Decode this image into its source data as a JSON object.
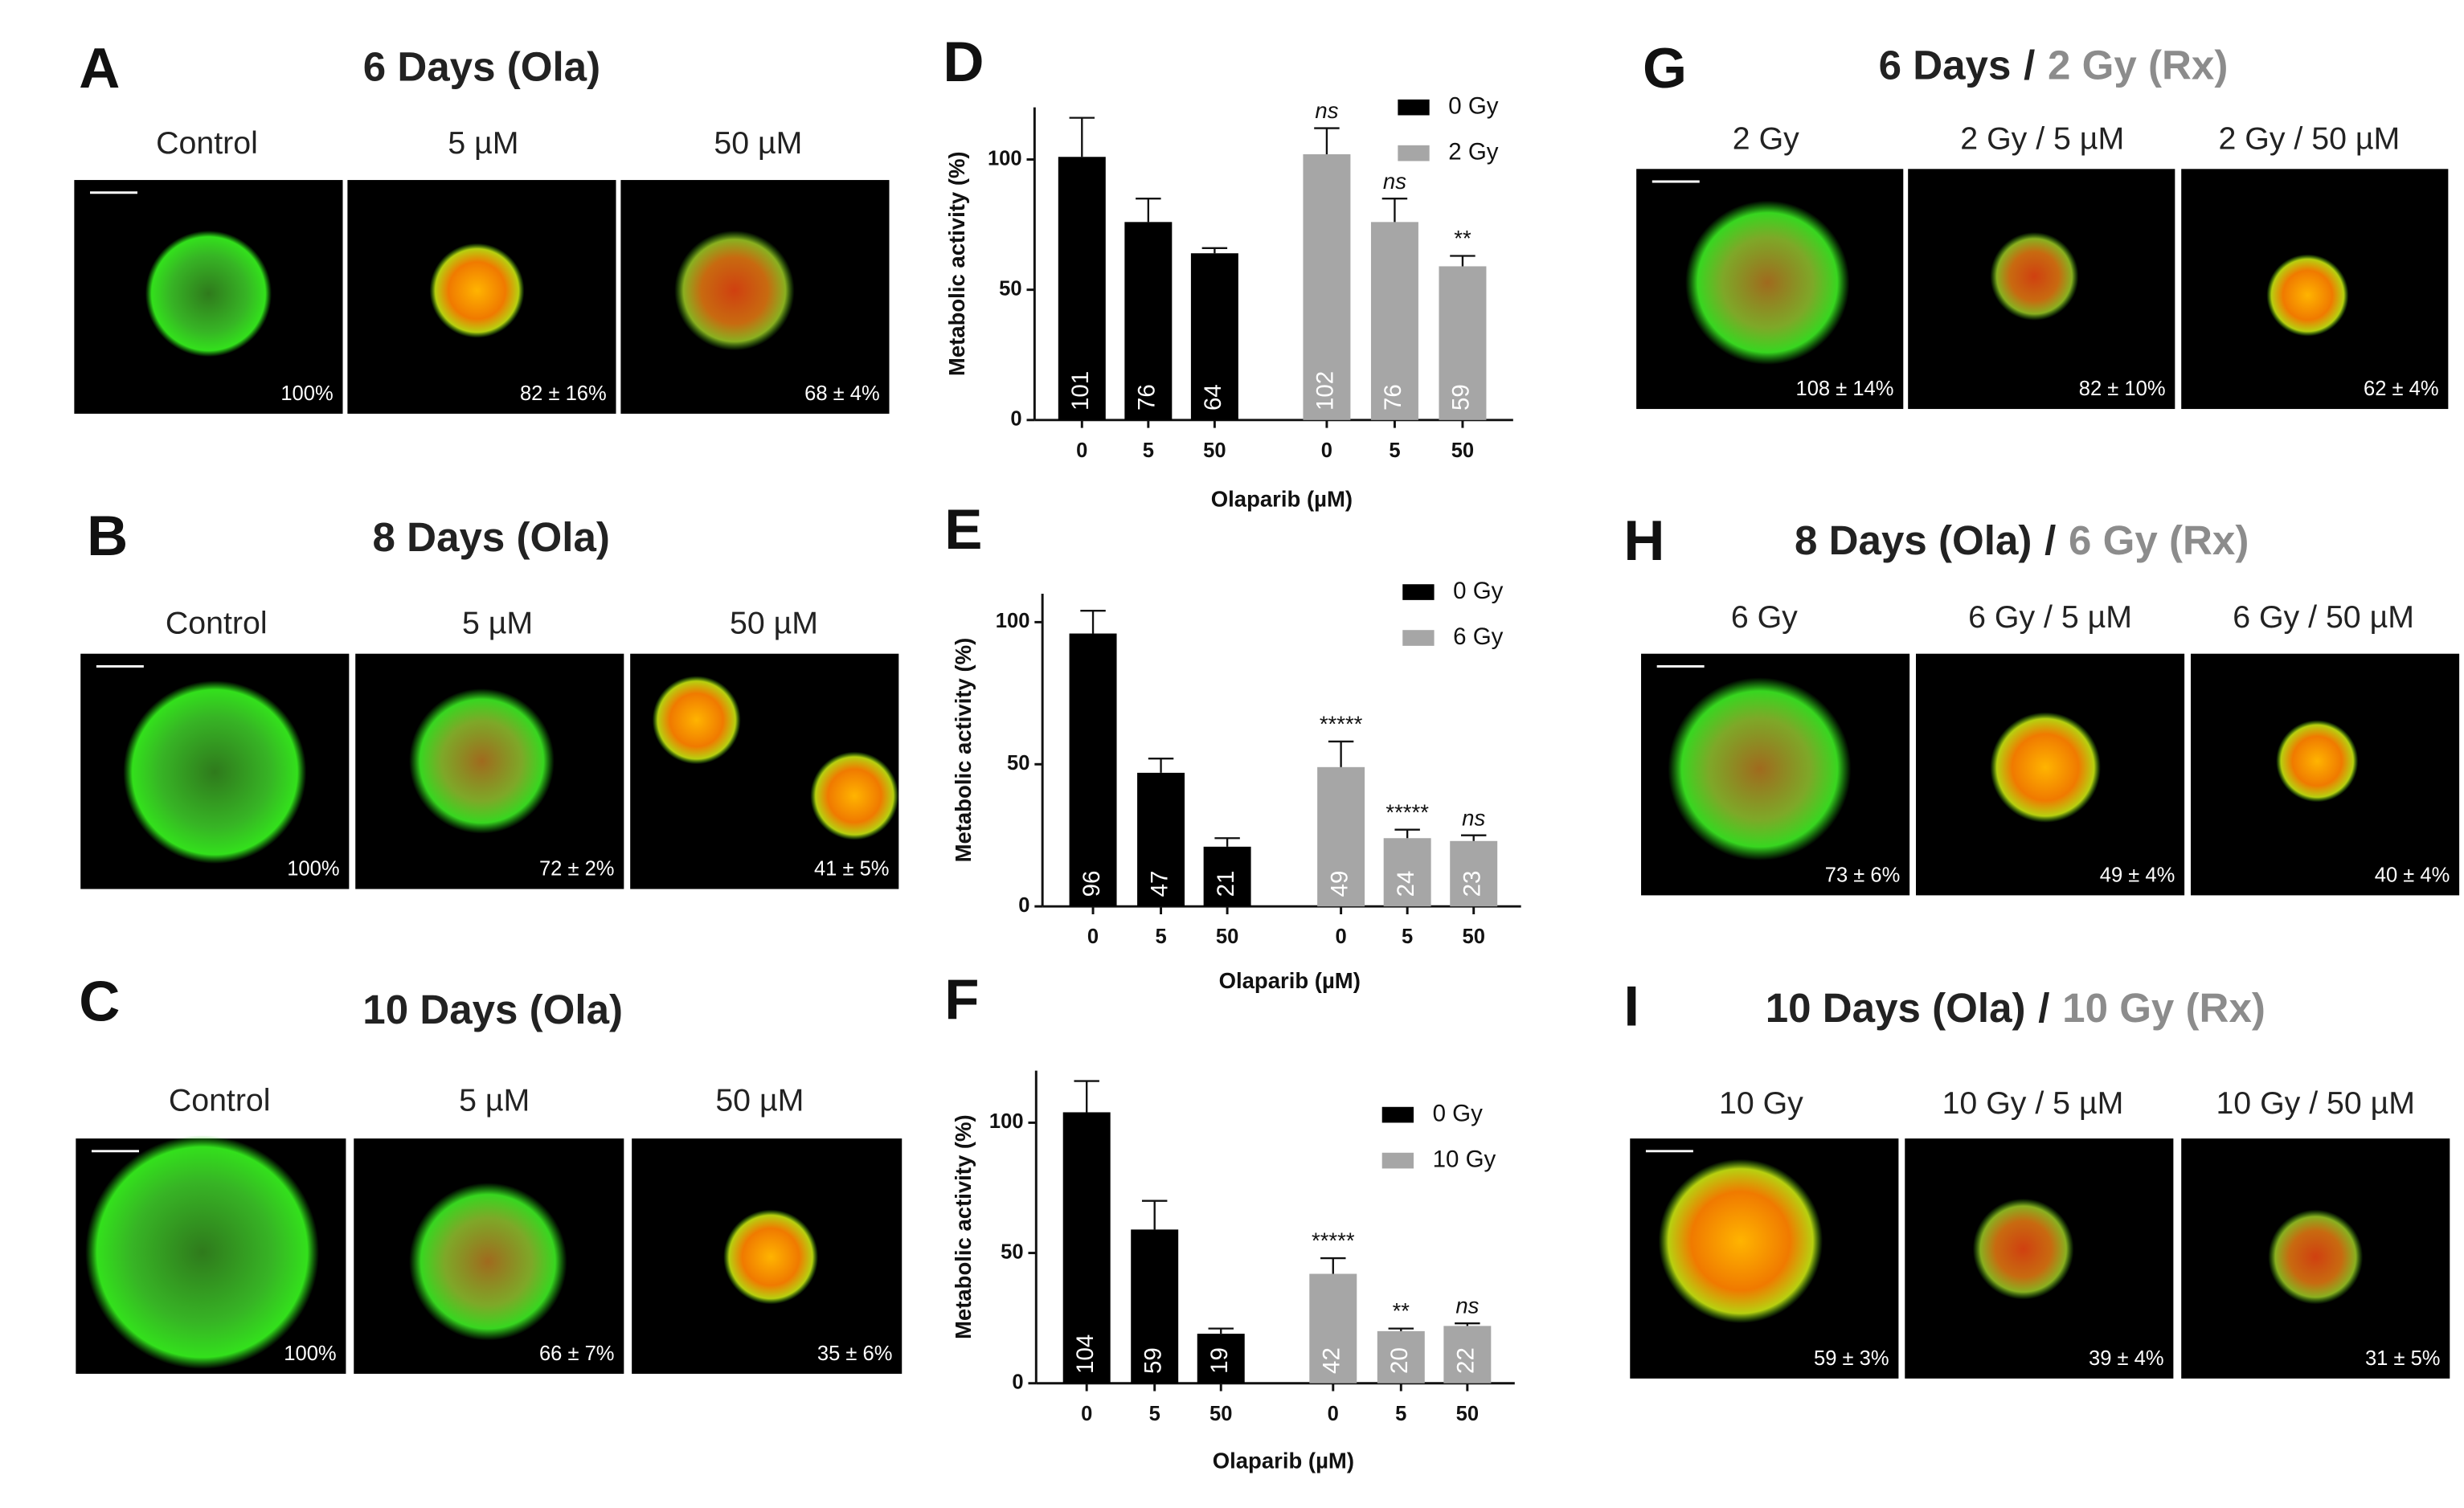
{
  "panels": [
    {
      "letter": "A",
      "title": "6 Days (Ola)",
      "columns": [
        "Control",
        "5 µM",
        "50 µM"
      ],
      "percent": [
        "100%",
        "82 ± 16%",
        "68 ± 4%"
      ]
    },
    {
      "letter": "B",
      "title": "8 Days (Ola)",
      "columns": [
        "Control",
        "5 µM",
        "50 µM"
      ],
      "percent": [
        "100%",
        "72 ± 2%",
        "41 ± 5%"
      ]
    },
    {
      "letter": "C",
      "title": "10 Days (Ola)",
      "columns": [
        "Control",
        "5 µM",
        "50 µM"
      ],
      "percent": [
        "100%",
        "66 ± 7%",
        "35 ± 6%"
      ]
    },
    {
      "letter": "G",
      "title": "6 Days",
      "separator": "/",
      "rx": "2 Gy (Rx)",
      "columns": [
        "2 Gy",
        "2 Gy / 5 µM",
        "2 Gy / 50 µM"
      ],
      "percent": [
        "108 ± 14%",
        "82 ± 10%",
        "62 ± 4%"
      ]
    },
    {
      "letter": "H",
      "title": "8 Days (Ola)",
      "separator": "/",
      "rx": "6 Gy (Rx)",
      "columns": [
        "6 Gy",
        "6 Gy / 5 µM",
        "6 Gy / 50 µM"
      ],
      "percent": [
        "73 ± 6%",
        "49 ± 4%",
        "40 ± 4%"
      ]
    },
    {
      "letter": "I",
      "title": "10 Days (Ola)",
      "separator": "/",
      "rx": "10 Gy (Rx)",
      "columns": [
        "10 Gy",
        "10 Gy / 5 µM",
        "10 Gy / 50 µM"
      ],
      "percent": [
        "59 ± 3%",
        "39 ± 4%",
        "31 ± 5%"
      ]
    }
  ],
  "chart_data": [
    {
      "type": "bar",
      "label": "D",
      "ylabel": "Metabolic activity (%)",
      "xlabel": "Olaparib (µM)",
      "categories": [
        "0",
        "5",
        "50",
        "0",
        "5",
        "50"
      ],
      "series": [
        {
          "name": "0 Gy",
          "color": "#000000",
          "values": [
            101,
            76,
            64,
            null,
            null,
            null
          ],
          "errors": [
            15,
            9,
            2,
            null,
            null,
            null
          ]
        },
        {
          "name": "2 Gy",
          "color": "#a6a6a6",
          "values": [
            null,
            null,
            null,
            102,
            76,
            59
          ],
          "errors": [
            null,
            null,
            null,
            10,
            9,
            4
          ]
        }
      ],
      "annotations": [
        null,
        null,
        null,
        "ns",
        "ns",
        "**"
      ],
      "ylim": [
        0,
        120
      ],
      "yticks": [
        0,
        50,
        100
      ],
      "legend": "upper right"
    },
    {
      "type": "bar",
      "label": "E",
      "ylabel": "Metabolic activity (%)",
      "xlabel": "Olaparib (µM)",
      "categories": [
        "0",
        "5",
        "50",
        "0",
        "5",
        "50"
      ],
      "series": [
        {
          "name": "0 Gy",
          "color": "#000000",
          "values": [
            96,
            47,
            21,
            null,
            null,
            null
          ],
          "errors": [
            8,
            5,
            3,
            null,
            null,
            null
          ]
        },
        {
          "name": "6 Gy",
          "color": "#a6a6a6",
          "values": [
            null,
            null,
            null,
            49,
            24,
            23
          ],
          "errors": [
            null,
            null,
            null,
            9,
            3,
            2
          ]
        }
      ],
      "annotations": [
        null,
        null,
        null,
        "*****",
        "*****",
        "ns"
      ],
      "ylim": [
        0,
        110
      ],
      "yticks": [
        0,
        50,
        100
      ],
      "legend": "upper right"
    },
    {
      "type": "bar",
      "label": "F",
      "ylabel": "Metabolic activity (%)",
      "xlabel": "Olaparib (µM)",
      "categories": [
        "0",
        "5",
        "50",
        "0",
        "5",
        "50"
      ],
      "series": [
        {
          "name": "0 Gy",
          "color": "#000000",
          "values": [
            104,
            59,
            19,
            null,
            null,
            null
          ],
          "errors": [
            12,
            11,
            2,
            null,
            null,
            null
          ]
        },
        {
          "name": "10 Gy",
          "color": "#a6a6a6",
          "values": [
            null,
            null,
            null,
            42,
            20,
            22
          ],
          "errors": [
            null,
            null,
            null,
            6,
            1,
            1
          ]
        }
      ],
      "annotations": [
        null,
        null,
        null,
        "*****",
        "**",
        "ns"
      ],
      "ylim": [
        0,
        120
      ],
      "yticks": [
        0,
        50,
        100
      ],
      "legend": "upper right"
    }
  ]
}
